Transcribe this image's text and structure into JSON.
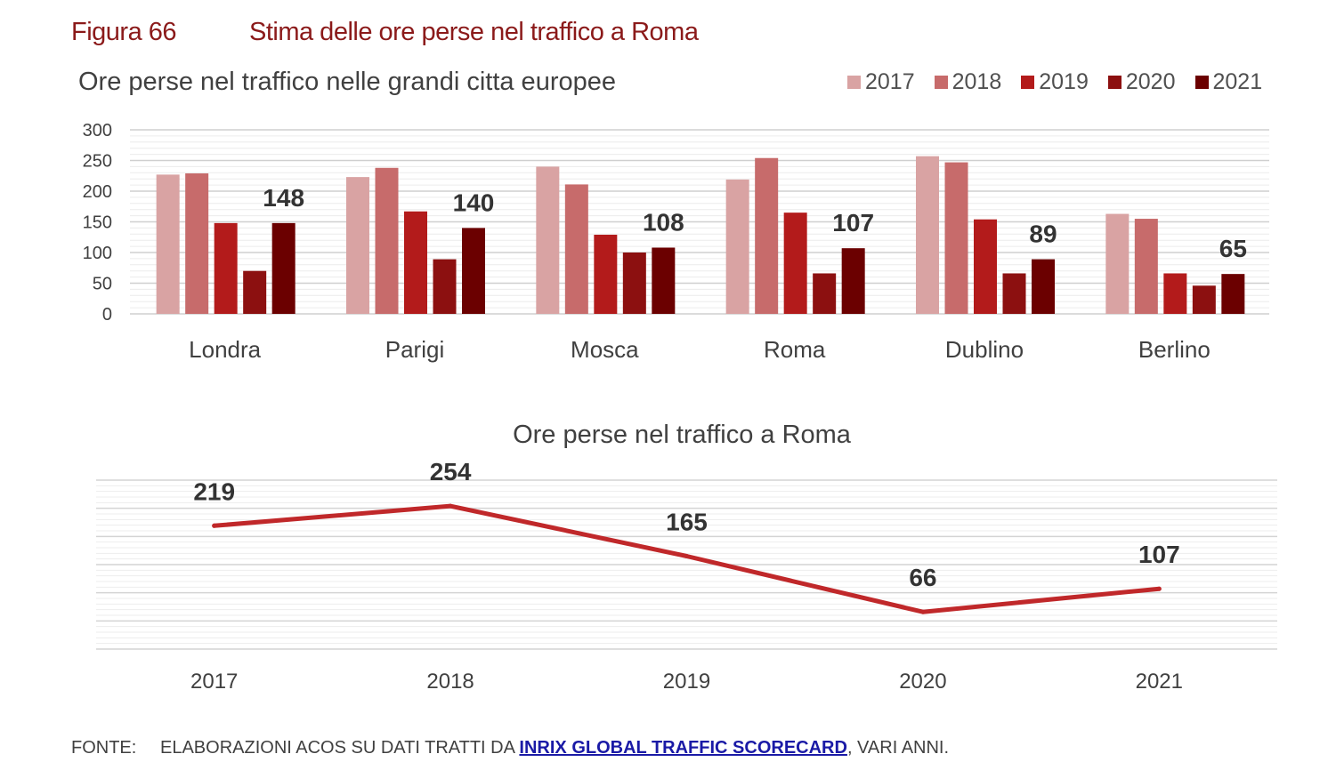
{
  "figure": {
    "label": "Figura 66",
    "title": "Stima delle ore perse nel traffico a Roma"
  },
  "colors": {
    "series": [
      "#d9a3a3",
      "#c76b6b",
      "#b31b1b",
      "#8c1010",
      "#6b0000"
    ],
    "line": "#c0282a",
    "title": "#8b1a1a",
    "grid": "#d9d9d9"
  },
  "chart_data": [
    {
      "type": "bar",
      "title": "Ore perse nel traffico nelle grandi citta europee",
      "categories": [
        "Londra",
        "Parigi",
        "Mosca",
        "Roma",
        "Dublino",
        "Berlino"
      ],
      "series": [
        {
          "name": "2017",
          "values": [
            227,
            223,
            240,
            219,
            257,
            163
          ]
        },
        {
          "name": "2018",
          "values": [
            229,
            238,
            211,
            254,
            247,
            155
          ]
        },
        {
          "name": "2019",
          "values": [
            148,
            167,
            129,
            165,
            154,
            66
          ]
        },
        {
          "name": "2020",
          "values": [
            70,
            89,
            100,
            66,
            66,
            46
          ]
        },
        {
          "name": "2021",
          "values": [
            148,
            140,
            108,
            107,
            89,
            65
          ]
        }
      ],
      "labeled_series": "2021",
      "ylim": [
        0,
        300
      ],
      "yticks": [
        0,
        50,
        100,
        150,
        200,
        250,
        300
      ],
      "legend_position": "top-right"
    },
    {
      "type": "line",
      "title": "Ore perse nel traffico a Roma",
      "x": [
        "2017",
        "2018",
        "2019",
        "2020",
        "2021"
      ],
      "values": [
        219,
        254,
        165,
        66,
        107
      ],
      "ylim": [
        0,
        300
      ]
    }
  ],
  "source": {
    "label": "FONTE:",
    "prefix": "ELABORAZIONI ACOS SU DATI TRATTI DA ",
    "link_text": "INRIX GLOBAL TRAFFIC SCORECARD",
    "suffix": ", VARI ANNI."
  }
}
